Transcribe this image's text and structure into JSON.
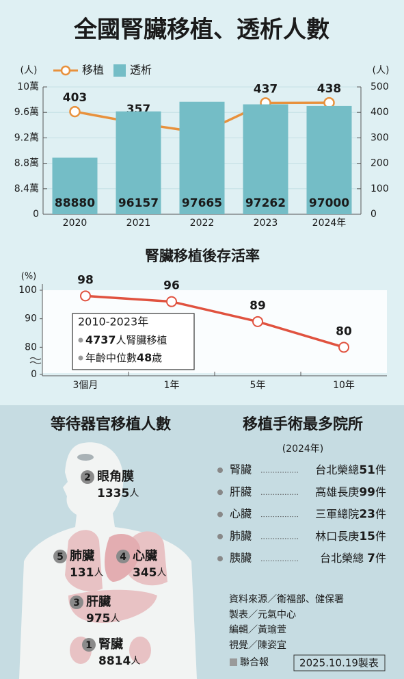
{
  "title": "全國腎臟移植、透析人數",
  "chart_data": [
    {
      "type": "bar_line",
      "categories": [
        "2020",
        "2021",
        "2022",
        "2023",
        "2024年"
      ],
      "ylabel": "(人)",
      "y2label": "(人)",
      "series": [
        {
          "name": "移植",
          "type": "line",
          "axis": "y2",
          "color": "#e8913c",
          "values": [
            403,
            357,
            320,
            437,
            438
          ]
        },
        {
          "name": "透析",
          "type": "bar",
          "color": "#74bdc6",
          "values": [
            88880,
            96157,
            97665,
            97262,
            97000
          ]
        }
      ],
      "ylim": [
        80000,
        100000
      ],
      "yticks": [
        0,
        {
          "value": 84000,
          "label": "8.4萬"
        },
        {
          "value": 88000,
          "label": "8.8萬"
        },
        {
          "value": 92000,
          "label": "9.2萬"
        },
        {
          "value": 96000,
          "label": "9.6萬"
        },
        {
          "value": 100000,
          "label": "10萬"
        }
      ],
      "axis_break": true,
      "y2lim": [
        0,
        500
      ],
      "y2ticks": [
        0,
        100,
        200,
        300,
        400,
        500
      ]
    },
    {
      "type": "line",
      "title": "腎臟移植後存活率",
      "ylabel": "(%)",
      "categories": [
        "3個月",
        "1年",
        "5年",
        "10年"
      ],
      "values": [
        98,
        96,
        89,
        80
      ],
      "color": "#e0523f",
      "ylim": [
        70,
        100
      ],
      "yticks": [
        0,
        80,
        90,
        100
      ],
      "axis_break": true,
      "annotation": {
        "title": "2010-2023年",
        "lines": [
          [
            "4737",
            "人腎臟移植"
          ],
          [
            "年齡中位數",
            "48",
            "歲"
          ]
        ]
      }
    }
  ],
  "waiting": {
    "title": "等待器官移植人數",
    "unit": "人",
    "organs": [
      {
        "rank": 2,
        "name": "眼角膜",
        "count": 1335
      },
      {
        "rank": 5,
        "name": "肺臟",
        "count": 131
      },
      {
        "rank": 4,
        "name": "心臟",
        "count": 345
      },
      {
        "rank": 3,
        "name": "肝臟",
        "count": 975
      },
      {
        "rank": 1,
        "name": "腎臟",
        "count": 8814
      }
    ]
  },
  "hospitals": {
    "title": "移植手術最多院所",
    "subtitle": "(2024年)",
    "unit": "件",
    "rows": [
      {
        "organ": "腎臟",
        "hospital": "台北榮總",
        "count": 51
      },
      {
        "organ": "肝臟",
        "hospital": "高雄長庚",
        "count": 99
      },
      {
        "organ": "心臟",
        "hospital": "三軍總院",
        "count": 23
      },
      {
        "organ": "肺臟",
        "hospital": "林口長庚",
        "count": 15
      },
      {
        "organ": "胰臟",
        "hospital": "台北榮總 ",
        "count": 7
      }
    ]
  },
  "credits": {
    "lines": [
      "資料來源／衛福部、健保署",
      "製表／元氣中心",
      "編輯／黃瑜萱",
      "視覺／陳姿宜"
    ],
    "publisher": "聯合報",
    "date": "2025.10.19製表"
  }
}
